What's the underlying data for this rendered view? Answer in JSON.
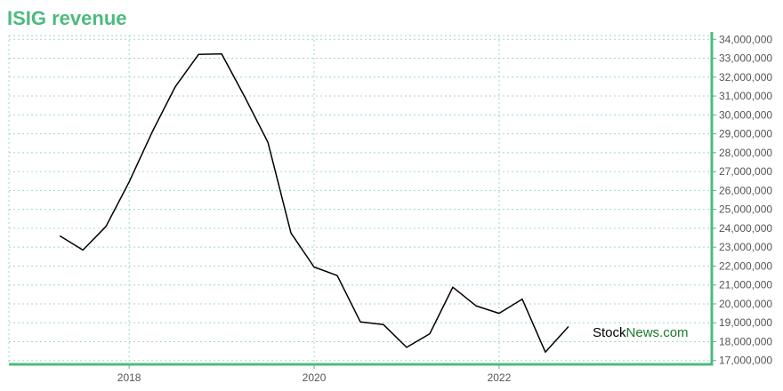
{
  "chart_data": {
    "type": "line",
    "title": "ISIG revenue",
    "xlabel": "",
    "ylabel": "",
    "ylim": [
      16800000,
      34200000
    ],
    "y_ticks": [
      17000000,
      18000000,
      19000000,
      20000000,
      21000000,
      22000000,
      23000000,
      24000000,
      25000000,
      26000000,
      27000000,
      28000000,
      29000000,
      30000000,
      31000000,
      32000000,
      33000000,
      34000000
    ],
    "y_tick_labels": [
      "17,000,000",
      "18,000,000",
      "19,000,000",
      "20,000,000",
      "21,000,000",
      "22,000,000",
      "23,000,000",
      "24,000,000",
      "25,000,000",
      "26,000,000",
      "27,000,000",
      "28,000,000",
      "29,000,000",
      "30,000,000",
      "31,000,000",
      "32,000,000",
      "33,000,000",
      "34,000,000"
    ],
    "x_range": [
      2016.7,
      2024.3
    ],
    "x_ticks": [
      2018,
      2020,
      2022
    ],
    "x_tick_labels": [
      "2018",
      "2020",
      "2022"
    ],
    "grid": true,
    "axis_side": "right",
    "series": [
      {
        "x": [
          2017.25,
          2017.5,
          2017.75,
          2018.0,
          2018.25,
          2018.5,
          2018.75,
          2019.0,
          2019.25,
          2019.5,
          2019.75,
          2020.0,
          2020.25,
          2020.5,
          2020.75,
          2021.0,
          2021.25,
          2021.5,
          2021.75,
          2022.0,
          2022.25,
          2022.5,
          2022.75
        ],
        "values": [
          23600000,
          22850000,
          24100000,
          26450000,
          29100000,
          31500000,
          33200000,
          33230000,
          30950000,
          28550000,
          23750000,
          21950000,
          21500000,
          19050000,
          18900000,
          17700000,
          18420000,
          20880000,
          19900000,
          19500000,
          20250000,
          17450000,
          18800000
        ],
        "color": "#000000"
      }
    ],
    "watermark": {
      "part1": "Stock",
      "part2": "News.com"
    },
    "colors": {
      "accent": "#4cbb7f",
      "grid": "#9fd9c5",
      "text": "#555555",
      "watermark_green": "#1a7a2a"
    }
  }
}
